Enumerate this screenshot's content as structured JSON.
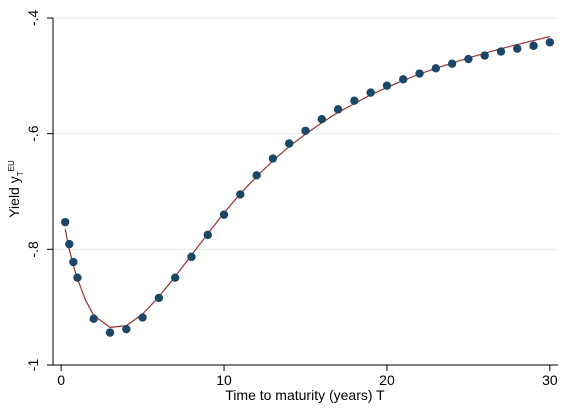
{
  "chart_data": {
    "type": "scatter",
    "xlabel": "Time to maturity (years) T",
    "ylabel_main": "Yield y",
    "ylabel_sub": "T",
    "ylabel_sup": "EU",
    "xlim": [
      -0.5,
      30.5
    ],
    "ylim": [
      -1.0,
      -0.4
    ],
    "x_ticks": [
      {
        "value": 0,
        "label": "0"
      },
      {
        "value": 10,
        "label": "10"
      },
      {
        "value": 20,
        "label": "20"
      },
      {
        "value": 30,
        "label": "30"
      }
    ],
    "y_ticks": [
      {
        "value": -0.4,
        "label": "-.4"
      },
      {
        "value": -0.6,
        "label": "-.6"
      },
      {
        "value": -0.8,
        "label": "-.8"
      },
      {
        "value": -1.0,
        "label": "-1"
      }
    ],
    "grid": "horizontal",
    "colors": {
      "markers": "#1a4668",
      "fit_line": "#9b2f2f",
      "grid": "#eaeaea",
      "axis": "#000000"
    },
    "series": [
      {
        "kind": "markers",
        "points": [
          [
            0.25,
            -0.753
          ],
          [
            0.5,
            -0.791
          ],
          [
            0.75,
            -0.822
          ],
          [
            1,
            -0.849
          ],
          [
            2,
            -0.92
          ],
          [
            3,
            -0.944
          ],
          [
            4,
            -0.938
          ],
          [
            5,
            -0.918
          ],
          [
            6,
            -0.884
          ],
          [
            7,
            -0.849
          ],
          [
            8,
            -0.813
          ],
          [
            9,
            -0.775
          ],
          [
            10,
            -0.74
          ],
          [
            11,
            -0.705
          ],
          [
            12,
            -0.672
          ],
          [
            13,
            -0.643
          ],
          [
            14,
            -0.617
          ],
          [
            15,
            -0.595
          ],
          [
            16,
            -0.575
          ],
          [
            17,
            -0.558
          ],
          [
            18,
            -0.543
          ],
          [
            19,
            -0.529
          ],
          [
            20,
            -0.517
          ],
          [
            21,
            -0.506
          ],
          [
            22,
            -0.496
          ],
          [
            23,
            -0.487
          ],
          [
            24,
            -0.479
          ],
          [
            25,
            -0.471
          ],
          [
            26,
            -0.465
          ],
          [
            27,
            -0.458
          ],
          [
            28,
            -0.453
          ],
          [
            29,
            -0.448
          ],
          [
            30,
            -0.442
          ]
        ]
      },
      {
        "kind": "line",
        "points": [
          [
            0.25,
            -0.765
          ],
          [
            0.5,
            -0.8
          ],
          [
            0.75,
            -0.828
          ],
          [
            1,
            -0.851
          ],
          [
            1.5,
            -0.888
          ],
          [
            2,
            -0.914
          ],
          [
            3,
            -0.935
          ],
          [
            4,
            -0.932
          ],
          [
            5,
            -0.912
          ],
          [
            6,
            -0.882
          ],
          [
            7,
            -0.847
          ],
          [
            8,
            -0.81
          ],
          [
            9,
            -0.773
          ],
          [
            10,
            -0.737
          ],
          [
            11,
            -0.704
          ],
          [
            12,
            -0.674
          ],
          [
            13,
            -0.647
          ],
          [
            14,
            -0.622
          ],
          [
            15,
            -0.601
          ],
          [
            16,
            -0.581
          ],
          [
            17,
            -0.563
          ],
          [
            18,
            -0.548
          ],
          [
            19,
            -0.533
          ],
          [
            20,
            -0.52
          ],
          [
            21,
            -0.508
          ],
          [
            22,
            -0.497
          ],
          [
            23,
            -0.487
          ],
          [
            24,
            -0.478
          ],
          [
            25,
            -0.469
          ],
          [
            26,
            -0.461
          ],
          [
            27,
            -0.453
          ],
          [
            28,
            -0.446
          ],
          [
            29,
            -0.439
          ],
          [
            30,
            -0.432
          ]
        ]
      }
    ]
  }
}
